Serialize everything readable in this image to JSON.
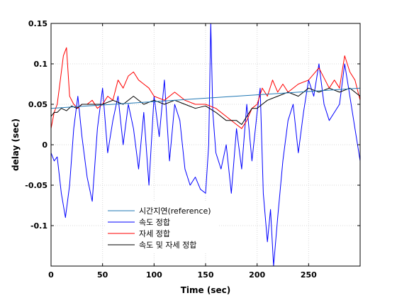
{
  "chart_data": {
    "type": "line",
    "xlabel": "Time (sec)",
    "ylabel": "delay (sec)",
    "xlim": [
      0,
      300
    ],
    "ylim": [
      -0.15,
      0.15
    ],
    "x_ticks": [
      0,
      50,
      100,
      150,
      200,
      250
    ],
    "y_ticks": [
      0.15,
      0.1,
      0.05,
      0,
      -0.05,
      -0.1
    ],
    "y_tick_labels": [
      "0.15",
      "0.1",
      "0.05",
      "0",
      "-0.05",
      "-0.1"
    ],
    "grid": true,
    "legend_position": "bottom-left",
    "series": [
      {
        "name": "시간지연(reference)",
        "color": "#1f77b4",
        "x": [
          0,
          300
        ],
        "y": [
          0.045,
          0.07
        ]
      },
      {
        "name": "속도 정합",
        "color": "#0000ff",
        "x": [
          0,
          3,
          6,
          10,
          14,
          18,
          22,
          26,
          30,
          35,
          40,
          45,
          50,
          55,
          60,
          65,
          70,
          75,
          80,
          85,
          90,
          95,
          100,
          105,
          110,
          115,
          120,
          125,
          130,
          135,
          140,
          145,
          150,
          153,
          155,
          157,
          160,
          165,
          170,
          175,
          180,
          185,
          190,
          195,
          200,
          203,
          206,
          210,
          213,
          216,
          220,
          225,
          230,
          235,
          240,
          245,
          250,
          255,
          260,
          265,
          270,
          275,
          280,
          285,
          290,
          295,
          300
        ],
        "y": [
          -0.01,
          -0.02,
          -0.015,
          -0.06,
          -0.09,
          -0.05,
          0.02,
          0.06,
          0.01,
          -0.04,
          -0.07,
          0.02,
          0.07,
          -0.01,
          0.03,
          0.06,
          0.0,
          0.05,
          0.02,
          -0.03,
          0.04,
          -0.05,
          0.06,
          0.01,
          0.08,
          -0.02,
          0.05,
          0.03,
          -0.03,
          -0.05,
          -0.04,
          -0.055,
          -0.06,
          0.0,
          0.15,
          0.04,
          -0.01,
          -0.03,
          0.0,
          -0.06,
          0.02,
          -0.03,
          0.05,
          -0.02,
          0.04,
          0.07,
          -0.06,
          -0.12,
          -0.08,
          -0.15,
          -0.09,
          -0.02,
          0.03,
          0.05,
          -0.01,
          0.04,
          0.08,
          0.06,
          0.1,
          0.05,
          0.03,
          0.04,
          0.05,
          0.1,
          0.06,
          0.02,
          -0.02
        ]
      },
      {
        "name": "자세 정합",
        "color": "#ff0000",
        "x": [
          0,
          3,
          6,
          9,
          12,
          15,
          18,
          22,
          26,
          30,
          35,
          40,
          45,
          50,
          55,
          60,
          65,
          70,
          75,
          80,
          85,
          90,
          95,
          100,
          110,
          120,
          130,
          140,
          150,
          160,
          170,
          180,
          185,
          190,
          195,
          200,
          205,
          210,
          215,
          220,
          225,
          230,
          240,
          250,
          260,
          270,
          275,
          280,
          285,
          290,
          295,
          300
        ],
        "y": [
          0.02,
          0.04,
          0.05,
          0.08,
          0.11,
          0.12,
          0.06,
          0.05,
          0.045,
          0.05,
          0.05,
          0.055,
          0.045,
          0.05,
          0.06,
          0.055,
          0.08,
          0.07,
          0.085,
          0.09,
          0.08,
          0.075,
          0.07,
          0.06,
          0.055,
          0.065,
          0.055,
          0.05,
          0.05,
          0.045,
          0.035,
          0.025,
          0.02,
          0.03,
          0.045,
          0.05,
          0.07,
          0.06,
          0.08,
          0.065,
          0.075,
          0.065,
          0.075,
          0.08,
          0.095,
          0.07,
          0.08,
          0.07,
          0.11,
          0.09,
          0.08,
          0.055
        ]
      },
      {
        "name": "속도 및 자세 정합",
        "color": "#000000",
        "x": [
          0,
          3,
          6,
          10,
          15,
          20,
          25,
          30,
          40,
          50,
          60,
          70,
          80,
          90,
          100,
          110,
          120,
          130,
          140,
          150,
          160,
          170,
          180,
          185,
          190,
          195,
          200,
          205,
          210,
          220,
          230,
          240,
          250,
          260,
          270,
          280,
          290,
          300
        ],
        "y": [
          0.035,
          0.04,
          0.04,
          0.045,
          0.042,
          0.048,
          0.045,
          0.05,
          0.05,
          0.05,
          0.055,
          0.05,
          0.06,
          0.05,
          0.055,
          0.05,
          0.055,
          0.05,
          0.045,
          0.048,
          0.04,
          0.03,
          0.03,
          0.025,
          0.035,
          0.045,
          0.045,
          0.05,
          0.055,
          0.06,
          0.065,
          0.06,
          0.07,
          0.065,
          0.07,
          0.065,
          0.07,
          0.06
        ]
      }
    ]
  }
}
